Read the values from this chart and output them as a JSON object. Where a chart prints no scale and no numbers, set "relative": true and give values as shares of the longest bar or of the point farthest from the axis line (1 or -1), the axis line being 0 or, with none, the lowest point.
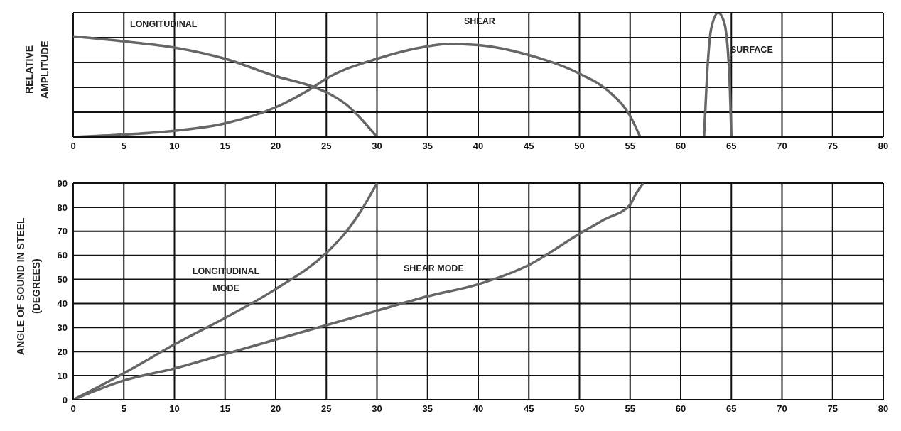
{
  "chart_data": [
    {
      "type": "line",
      "relative": true,
      "ylabel": "RELATIVE AMPLITUDE",
      "xlim": [
        0,
        80
      ],
      "xticks": [
        0,
        5,
        10,
        15,
        20,
        25,
        30,
        35,
        40,
        45,
        50,
        55,
        60,
        65,
        70,
        75,
        80
      ],
      "grid": true,
      "marker": "none",
      "series": [
        {
          "name": "LONGITUDINAL",
          "color": "#666666",
          "x": [
            0,
            5,
            10,
            15,
            20,
            23.5,
            25,
            27,
            30
          ],
          "values": [
            0.81,
            0.77,
            0.72,
            0.63,
            0.49,
            0.41,
            0.36,
            0.26,
            0
          ]
        },
        {
          "name": "SHEAR",
          "color": "#666666",
          "x": [
            0,
            5,
            10,
            15,
            20,
            23.5,
            25,
            30,
            35,
            37,
            40,
            45,
            50,
            53,
            55,
            56
          ],
          "values": [
            0,
            0.02,
            0.05,
            0.11,
            0.24,
            0.39,
            0.47,
            0.63,
            0.73,
            0.75,
            0.74,
            0.66,
            0.51,
            0.36,
            0.17,
            0
          ]
        },
        {
          "name": "SURFACE",
          "color": "#666666",
          "x": [
            62.3,
            62.6,
            63,
            63.7,
            64.3,
            64.8,
            65
          ],
          "values": [
            0,
            0.5,
            0.87,
            1,
            0.92,
            0.5,
            0
          ]
        }
      ]
    },
    {
      "type": "line",
      "ylabel": "ANGLE OF SOUND IN STEEL (DEGREES)",
      "xlim": [
        0,
        80
      ],
      "xticks": [
        0,
        5,
        10,
        15,
        20,
        25,
        30,
        35,
        40,
        45,
        50,
        55,
        60,
        65,
        70,
        75,
        80
      ],
      "ylim": [
        0,
        90
      ],
      "yticks": [
        0,
        10,
        20,
        30,
        40,
        50,
        60,
        70,
        80,
        90
      ],
      "grid": true,
      "marker": "none",
      "series": [
        {
          "name": "LONGITUDINAL MODE",
          "color": "#666666",
          "x": [
            0,
            5,
            10,
            15,
            20,
            25,
            27,
            28.5,
            30
          ],
          "values": [
            0,
            11,
            23,
            34,
            46,
            61,
            70,
            79,
            90
          ]
        },
        {
          "name": "SHEAR MODE",
          "color": "#666666",
          "x": [
            0,
            5,
            10,
            15,
            20,
            25,
            30,
            35,
            40,
            45,
            50,
            52.5,
            55,
            55.5,
            56.3
          ],
          "values": [
            0,
            8,
            13,
            19,
            25,
            31,
            37,
            43,
            48,
            56,
            69,
            75,
            81,
            85,
            90
          ]
        }
      ]
    }
  ]
}
